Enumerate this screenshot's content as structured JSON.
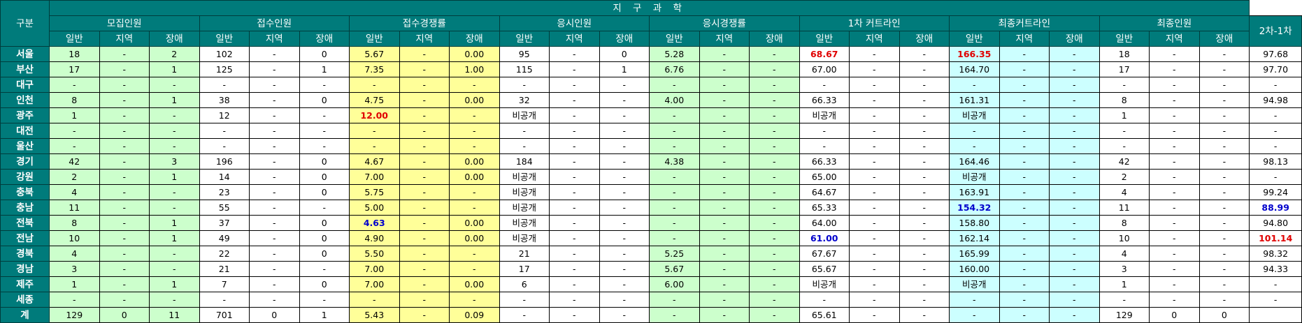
{
  "title": "지 구 과 학",
  "region_header": "구분",
  "diff_header": "2차-1차",
  "groups": [
    "모집인원",
    "접수인원",
    "접수경쟁률",
    "응시인원",
    "응시경쟁률",
    "1차 커트라인",
    "최종커트라인",
    "최종인원"
  ],
  "sub_headers": [
    "일반",
    "지역",
    "장애"
  ],
  "colors": {
    "header": "#007b7b",
    "green": "#ccffcc",
    "yellow": "#ffff99",
    "cyan": "#ccffff",
    "highlight_red": "#e00000",
    "highlight_blue": "#0000cc"
  },
  "group_fill": [
    "green",
    "white",
    "yellow",
    "white",
    "green",
    "white",
    "cyan",
    "white"
  ],
  "rows": [
    {
      "region": "서울",
      "cells": [
        "18",
        "-",
        "2",
        "102",
        "-",
        "0",
        "5.67",
        "-",
        "0.00",
        "95",
        "-",
        "0",
        "5.28",
        "-",
        "-",
        "68.67",
        "-",
        "-",
        "166.35",
        "-",
        "-",
        "18",
        "-",
        "-",
        "97.68"
      ]
    },
    {
      "region": "부산",
      "cells": [
        "17",
        "-",
        "1",
        "125",
        "-",
        "1",
        "7.35",
        "-",
        "1.00",
        "115",
        "-",
        "1",
        "6.76",
        "-",
        "-",
        "67.00",
        "-",
        "-",
        "164.70",
        "-",
        "-",
        "17",
        "-",
        "-",
        "97.70"
      ]
    },
    {
      "region": "대구",
      "cells": [
        "-",
        "-",
        "-",
        "-",
        "-",
        "-",
        "-",
        "-",
        "-",
        "-",
        "-",
        "-",
        "-",
        "-",
        "-",
        "-",
        "-",
        "-",
        "-",
        "-",
        "-",
        "-",
        "-",
        "-",
        "-"
      ]
    },
    {
      "region": "인천",
      "cells": [
        "8",
        "-",
        "1",
        "38",
        "-",
        "0",
        "4.75",
        "-",
        "0.00",
        "32",
        "-",
        "-",
        "4.00",
        "-",
        "-",
        "66.33",
        "-",
        "-",
        "161.31",
        "-",
        "-",
        "8",
        "-",
        "-",
        "94.98"
      ]
    },
    {
      "region": "광주",
      "cells": [
        "1",
        "-",
        "-",
        "12",
        "-",
        "-",
        "12.00",
        "-",
        "-",
        "비공개",
        "-",
        "-",
        "-",
        "-",
        "-",
        "비공개",
        "-",
        "-",
        "비공개",
        "-",
        "-",
        "1",
        "-",
        "-",
        "-"
      ]
    },
    {
      "region": "대전",
      "cells": [
        "-",
        "-",
        "-",
        "-",
        "-",
        "-",
        "-",
        "-",
        "-",
        "-",
        "-",
        "-",
        "-",
        "-",
        "-",
        "-",
        "-",
        "-",
        "-",
        "-",
        "-",
        "-",
        "-",
        "-",
        "-"
      ]
    },
    {
      "region": "울산",
      "cells": [
        "-",
        "-",
        "-",
        "-",
        "-",
        "-",
        "-",
        "-",
        "-",
        "-",
        "-",
        "-",
        "-",
        "-",
        "-",
        "-",
        "-",
        "-",
        "-",
        "-",
        "-",
        "-",
        "-",
        "-",
        "-"
      ]
    },
    {
      "region": "경기",
      "cells": [
        "42",
        "-",
        "3",
        "196",
        "-",
        "0",
        "4.67",
        "-",
        "0.00",
        "184",
        "-",
        "-",
        "4.38",
        "-",
        "-",
        "66.33",
        "-",
        "-",
        "164.46",
        "-",
        "-",
        "42",
        "-",
        "-",
        "98.13"
      ]
    },
    {
      "region": "강원",
      "cells": [
        "2",
        "-",
        "1",
        "14",
        "-",
        "0",
        "7.00",
        "-",
        "0.00",
        "비공개",
        "-",
        "-",
        "-",
        "-",
        "-",
        "65.00",
        "-",
        "-",
        "비공개",
        "-",
        "-",
        "2",
        "-",
        "-",
        "-"
      ]
    },
    {
      "region": "충북",
      "cells": [
        "4",
        "-",
        "-",
        "23",
        "-",
        "0",
        "5.75",
        "-",
        "-",
        "비공개",
        "-",
        "-",
        "-",
        "-",
        "-",
        "64.67",
        "-",
        "-",
        "163.91",
        "-",
        "-",
        "4",
        "-",
        "-",
        "99.24"
      ]
    },
    {
      "region": "충남",
      "cells": [
        "11",
        "-",
        "-",
        "55",
        "-",
        "-",
        "5.00",
        "-",
        "-",
        "비공개",
        "-",
        "-",
        "-",
        "-",
        "-",
        "65.33",
        "-",
        "-",
        "154.32",
        "-",
        "-",
        "11",
        "-",
        "-",
        "88.99"
      ]
    },
    {
      "region": "전북",
      "cells": [
        "8",
        "-",
        "1",
        "37",
        "-",
        "0",
        "4.63",
        "-",
        "0.00",
        "비공개",
        "-",
        "-",
        "-",
        "-",
        "-",
        "64.00",
        "-",
        "-",
        "158.80",
        "-",
        "-",
        "8",
        "-",
        "-",
        "94.80"
      ]
    },
    {
      "region": "전남",
      "cells": [
        "10",
        "-",
        "1",
        "49",
        "-",
        "0",
        "4.90",
        "-",
        "0.00",
        "비공개",
        "-",
        "-",
        "-",
        "-",
        "-",
        "61.00",
        "-",
        "-",
        "162.14",
        "-",
        "-",
        "10",
        "-",
        "-",
        "101.14"
      ]
    },
    {
      "region": "경북",
      "cells": [
        "4",
        "-",
        "-",
        "22",
        "-",
        "0",
        "5.50",
        "-",
        "-",
        "21",
        "-",
        "-",
        "5.25",
        "-",
        "-",
        "67.67",
        "-",
        "-",
        "165.99",
        "-",
        "-",
        "4",
        "-",
        "-",
        "98.32"
      ]
    },
    {
      "region": "경남",
      "cells": [
        "3",
        "-",
        "-",
        "21",
        "-",
        "-",
        "7.00",
        "-",
        "-",
        "17",
        "-",
        "-",
        "5.67",
        "-",
        "-",
        "65.67",
        "-",
        "-",
        "160.00",
        "-",
        "-",
        "3",
        "-",
        "-",
        "94.33"
      ]
    },
    {
      "region": "제주",
      "cells": [
        "1",
        "-",
        "1",
        "7",
        "-",
        "0",
        "7.00",
        "-",
        "0.00",
        "6",
        "-",
        "-",
        "6.00",
        "-",
        "-",
        "비공개",
        "-",
        "-",
        "비공개",
        "-",
        "-",
        "1",
        "-",
        "-",
        "-"
      ]
    },
    {
      "region": "세종",
      "cells": [
        "-",
        "-",
        "-",
        "-",
        "-",
        "-",
        "-",
        "-",
        "-",
        "-",
        "-",
        "-",
        "-",
        "-",
        "-",
        "-",
        "-",
        "-",
        "-",
        "-",
        "-",
        "-",
        "-",
        "-",
        "-"
      ]
    },
    {
      "region": "계",
      "cells": [
        "129",
        "0",
        "11",
        "701",
        "0",
        "1",
        "5.43",
        "-",
        "0.09",
        "-",
        "-",
        "-",
        "-",
        "-",
        "-",
        "65.61",
        "-",
        "-",
        "-",
        "-",
        "-",
        "129",
        "0",
        "0",
        ""
      ]
    }
  ],
  "highlights": [
    {
      "region": "광주",
      "column": "접수경쟁률 일반",
      "color": "red"
    },
    {
      "region": "서울",
      "column": "1차 커트라인 일반",
      "color": "red"
    },
    {
      "region": "서울",
      "column": "최종커트라인 일반",
      "color": "red"
    },
    {
      "region": "전남",
      "column": "2차-1차",
      "color": "red"
    },
    {
      "region": "전북",
      "column": "접수경쟁률 일반",
      "color": "blue"
    },
    {
      "region": "전남",
      "column": "1차 커트라인 일반",
      "color": "blue"
    },
    {
      "region": "충남",
      "column": "최종커트라인 일반",
      "color": "blue"
    },
    {
      "region": "충남",
      "column": "2차-1차",
      "color": "blue"
    }
  ]
}
